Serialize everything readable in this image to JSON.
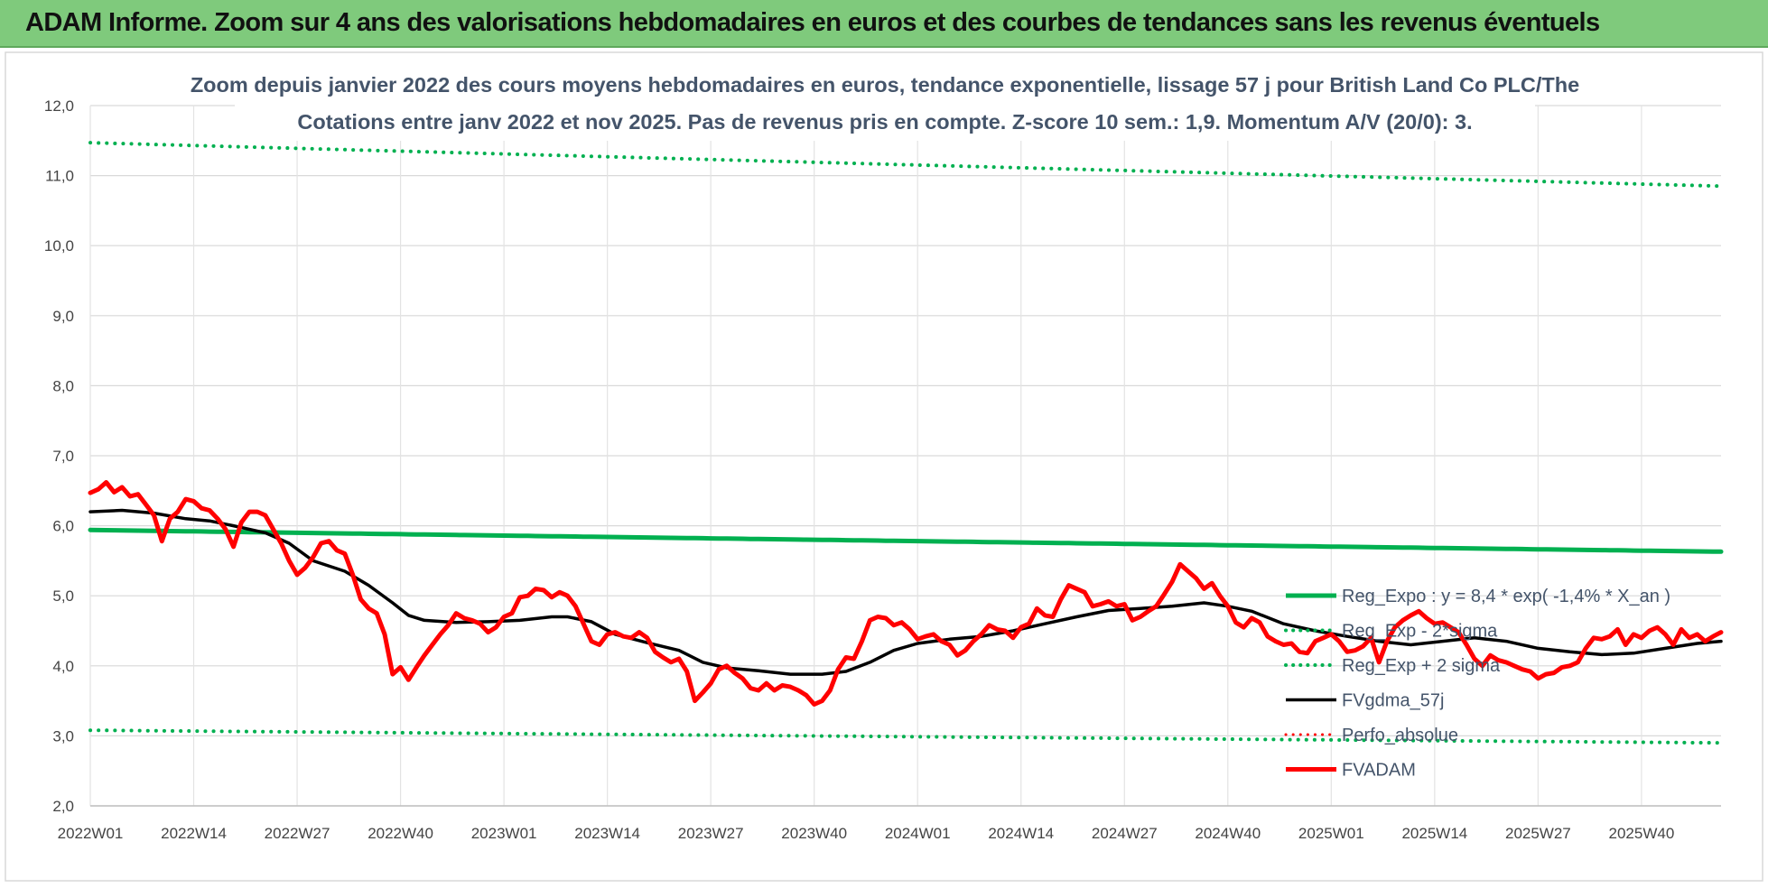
{
  "banner": {
    "title": "ADAM Informe. Zoom sur 4 ans des valorisations hebdomadaires en euros et des courbes de tendances sans les revenus éventuels"
  },
  "colors": {
    "banner": "#7fca7c",
    "reg_expo": "#00b050",
    "bands": "#00b050",
    "fvgdma": "#000000",
    "fvadam": "#ff0000",
    "perfo": "#ff0000"
  },
  "chart_data": {
    "type": "line",
    "title": "Zoom depuis janvier 2022 des cours moyens hebdomadaires en euros, tendance exponentielle, lissage 57 j pour British Land Co PLC/The",
    "subtitle": "Cotations entre janv 2022 et nov 2025. Pas de revenus pris en compte. Z-score 10 sem.: 1,9. Momentum A/V (20/0): 3.",
    "xlabel": "",
    "ylabel": "",
    "ylim": [
      2.0,
      12.0
    ],
    "yticks": [
      "2,0",
      "3,0",
      "4,0",
      "5,0",
      "6,0",
      "7,0",
      "8,0",
      "9,0",
      "10,0",
      "11,0",
      "12,0"
    ],
    "x_tick_labels": [
      "2022W01",
      "2022W14",
      "2022W27",
      "2022W40",
      "2023W01",
      "2023W14",
      "2023W27",
      "2023W40",
      "2024W01",
      "2024W14",
      "2024W27",
      "2024W40",
      "2025W01",
      "2025W14",
      "2025W27",
      "2025W40"
    ],
    "x_tick_weeks": [
      0,
      13,
      26,
      39,
      52,
      65,
      78,
      91,
      104,
      117,
      130,
      143,
      156,
      169,
      182,
      195
    ],
    "n_weeks": 206,
    "grid": true,
    "legend_position": "right",
    "series": [
      {
        "name": "Reg_Expo : y = 8,4 * exp( -1,4% * X_an )",
        "style": "solid",
        "color": "#00b050",
        "width": 5,
        "points": [
          [
            0,
            5.94
          ],
          [
            205,
            5.63
          ]
        ]
      },
      {
        "name": "Reg_Exp - 2*sigma",
        "style": "dotted",
        "color": "#00b050",
        "width": 4,
        "points": [
          [
            0,
            3.08
          ],
          [
            205,
            2.9
          ]
        ]
      },
      {
        "name": "Reg_Exp + 2 sigma",
        "style": "dotted",
        "color": "#00b050",
        "width": 4,
        "points": [
          [
            0,
            11.47
          ],
          [
            205,
            10.85
          ]
        ]
      },
      {
        "name": "FVgdma_57j",
        "style": "solid",
        "color": "#000000",
        "width": 3.5,
        "points": [
          [
            0,
            6.2
          ],
          [
            4,
            6.22
          ],
          [
            8,
            6.18
          ],
          [
            12,
            6.1
          ],
          [
            15,
            6.07
          ],
          [
            18,
            6.0
          ],
          [
            22,
            5.9
          ],
          [
            25,
            5.75
          ],
          [
            28,
            5.5
          ],
          [
            32,
            5.35
          ],
          [
            35,
            5.15
          ],
          [
            38,
            4.9
          ],
          [
            40,
            4.72
          ],
          [
            42,
            4.65
          ],
          [
            46,
            4.62
          ],
          [
            50,
            4.63
          ],
          [
            54,
            4.65
          ],
          [
            58,
            4.7
          ],
          [
            60,
            4.7
          ],
          [
            63,
            4.63
          ],
          [
            66,
            4.45
          ],
          [
            70,
            4.33
          ],
          [
            74,
            4.22
          ],
          [
            77,
            4.05
          ],
          [
            80,
            3.97
          ],
          [
            84,
            3.93
          ],
          [
            88,
            3.88
          ],
          [
            92,
            3.88
          ],
          [
            95,
            3.92
          ],
          [
            98,
            4.05
          ],
          [
            101,
            4.22
          ],
          [
            104,
            4.32
          ],
          [
            108,
            4.38
          ],
          [
            112,
            4.42
          ],
          [
            116,
            4.5
          ],
          [
            120,
            4.6
          ],
          [
            124,
            4.7
          ],
          [
            128,
            4.79
          ],
          [
            132,
            4.82
          ],
          [
            136,
            4.85
          ],
          [
            140,
            4.9
          ],
          [
            143,
            4.85
          ],
          [
            146,
            4.78
          ],
          [
            150,
            4.6
          ],
          [
            154,
            4.5
          ],
          [
            158,
            4.42
          ],
          [
            162,
            4.35
          ],
          [
            166,
            4.3
          ],
          [
            170,
            4.35
          ],
          [
            174,
            4.4
          ],
          [
            178,
            4.35
          ],
          [
            182,
            4.25
          ],
          [
            186,
            4.2
          ],
          [
            190,
            4.16
          ],
          [
            194,
            4.18
          ],
          [
            198,
            4.25
          ],
          [
            202,
            4.32
          ],
          [
            205,
            4.35
          ]
        ]
      },
      {
        "name": "Perfo_absolue",
        "style": "dotted",
        "color": "#ff0000",
        "width": 3,
        "points": []
      },
      {
        "name": "FVADAM",
        "style": "solid",
        "color": "#ff0000",
        "width": 5,
        "points": [
          [
            0,
            6.47
          ],
          [
            1,
            6.52
          ],
          [
            2,
            6.62
          ],
          [
            3,
            6.48
          ],
          [
            4,
            6.55
          ],
          [
            5,
            6.42
          ],
          [
            6,
            6.45
          ],
          [
            7,
            6.3
          ],
          [
            8,
            6.15
          ],
          [
            9,
            5.78
          ],
          [
            10,
            6.1
          ],
          [
            11,
            6.2
          ],
          [
            12,
            6.38
          ],
          [
            13,
            6.35
          ],
          [
            14,
            6.25
          ],
          [
            15,
            6.22
          ],
          [
            16,
            6.1
          ],
          [
            17,
            5.95
          ],
          [
            18,
            5.7
          ],
          [
            19,
            6.05
          ],
          [
            20,
            6.2
          ],
          [
            21,
            6.2
          ],
          [
            22,
            6.15
          ],
          [
            23,
            5.95
          ],
          [
            24,
            5.75
          ],
          [
            25,
            5.5
          ],
          [
            26,
            5.3
          ],
          [
            27,
            5.4
          ],
          [
            28,
            5.55
          ],
          [
            29,
            5.75
          ],
          [
            30,
            5.78
          ],
          [
            31,
            5.65
          ],
          [
            32,
            5.6
          ],
          [
            33,
            5.3
          ],
          [
            34,
            4.95
          ],
          [
            35,
            4.82
          ],
          [
            36,
            4.75
          ],
          [
            37,
            4.45
          ],
          [
            38,
            3.88
          ],
          [
            39,
            3.98
          ],
          [
            40,
            3.8
          ],
          [
            41,
            3.98
          ],
          [
            42,
            4.15
          ],
          [
            43,
            4.3
          ],
          [
            44,
            4.45
          ],
          [
            45,
            4.58
          ],
          [
            46,
            4.75
          ],
          [
            47,
            4.68
          ],
          [
            48,
            4.65
          ],
          [
            49,
            4.6
          ],
          [
            50,
            4.48
          ],
          [
            51,
            4.55
          ],
          [
            52,
            4.7
          ],
          [
            53,
            4.75
          ],
          [
            54,
            4.98
          ],
          [
            55,
            5.0
          ],
          [
            56,
            5.1
          ],
          [
            57,
            5.08
          ],
          [
            58,
            4.98
          ],
          [
            59,
            5.05
          ],
          [
            60,
            5.0
          ],
          [
            61,
            4.85
          ],
          [
            62,
            4.6
          ],
          [
            63,
            4.35
          ],
          [
            64,
            4.3
          ],
          [
            65,
            4.45
          ],
          [
            66,
            4.48
          ],
          [
            67,
            4.42
          ],
          [
            68,
            4.4
          ],
          [
            69,
            4.48
          ],
          [
            70,
            4.4
          ],
          [
            71,
            4.2
          ],
          [
            72,
            4.12
          ],
          [
            73,
            4.05
          ],
          [
            74,
            4.1
          ],
          [
            75,
            3.92
          ],
          [
            76,
            3.5
          ],
          [
            77,
            3.62
          ],
          [
            78,
            3.75
          ],
          [
            79,
            3.95
          ],
          [
            80,
            4.0
          ],
          [
            81,
            3.9
          ],
          [
            82,
            3.82
          ],
          [
            83,
            3.68
          ],
          [
            84,
            3.65
          ],
          [
            85,
            3.75
          ],
          [
            86,
            3.65
          ],
          [
            87,
            3.72
          ],
          [
            88,
            3.7
          ],
          [
            89,
            3.65
          ],
          [
            90,
            3.58
          ],
          [
            91,
            3.45
          ],
          [
            92,
            3.5
          ],
          [
            93,
            3.65
          ],
          [
            94,
            3.95
          ],
          [
            95,
            4.12
          ],
          [
            96,
            4.1
          ],
          [
            97,
            4.35
          ],
          [
            98,
            4.65
          ],
          [
            99,
            4.7
          ],
          [
            100,
            4.68
          ],
          [
            101,
            4.58
          ],
          [
            102,
            4.62
          ],
          [
            103,
            4.52
          ],
          [
            104,
            4.38
          ],
          [
            105,
            4.42
          ],
          [
            106,
            4.45
          ],
          [
            107,
            4.35
          ],
          [
            108,
            4.3
          ],
          [
            109,
            4.15
          ],
          [
            110,
            4.22
          ],
          [
            111,
            4.35
          ],
          [
            112,
            4.45
          ],
          [
            113,
            4.58
          ],
          [
            114,
            4.52
          ],
          [
            115,
            4.5
          ],
          [
            116,
            4.4
          ],
          [
            117,
            4.55
          ],
          [
            118,
            4.6
          ],
          [
            119,
            4.82
          ],
          [
            120,
            4.72
          ],
          [
            121,
            4.7
          ],
          [
            122,
            4.95
          ],
          [
            123,
            5.15
          ],
          [
            124,
            5.1
          ],
          [
            125,
            5.05
          ],
          [
            126,
            4.85
          ],
          [
            127,
            4.88
          ],
          [
            128,
            4.92
          ],
          [
            129,
            4.85
          ],
          [
            130,
            4.88
          ],
          [
            131,
            4.65
          ],
          [
            132,
            4.7
          ],
          [
            133,
            4.78
          ],
          [
            134,
            4.85
          ],
          [
            135,
            5.02
          ],
          [
            136,
            5.2
          ],
          [
            137,
            5.45
          ],
          [
            138,
            5.35
          ],
          [
            139,
            5.25
          ],
          [
            140,
            5.1
          ],
          [
            141,
            5.18
          ],
          [
            142,
            5.0
          ],
          [
            143,
            4.85
          ],
          [
            144,
            4.62
          ],
          [
            145,
            4.55
          ],
          [
            146,
            4.68
          ],
          [
            147,
            4.62
          ],
          [
            148,
            4.42
          ],
          [
            149,
            4.35
          ],
          [
            150,
            4.3
          ],
          [
            151,
            4.32
          ],
          [
            152,
            4.2
          ],
          [
            153,
            4.18
          ],
          [
            154,
            4.35
          ],
          [
            155,
            4.4
          ],
          [
            156,
            4.45
          ],
          [
            157,
            4.35
          ],
          [
            158,
            4.2
          ],
          [
            159,
            4.22
          ],
          [
            160,
            4.28
          ],
          [
            161,
            4.4
          ],
          [
            162,
            4.05
          ],
          [
            163,
            4.35
          ],
          [
            164,
            4.55
          ],
          [
            165,
            4.65
          ],
          [
            166,
            4.72
          ],
          [
            167,
            4.78
          ],
          [
            168,
            4.68
          ],
          [
            169,
            4.6
          ],
          [
            170,
            4.62
          ],
          [
            171,
            4.55
          ],
          [
            172,
            4.48
          ],
          [
            173,
            4.3
          ],
          [
            174,
            4.1
          ],
          [
            175,
            4.0
          ],
          [
            176,
            4.15
          ],
          [
            177,
            4.08
          ],
          [
            178,
            4.05
          ],
          [
            179,
            4.0
          ],
          [
            180,
            3.95
          ],
          [
            181,
            3.92
          ],
          [
            182,
            3.82
          ],
          [
            183,
            3.88
          ],
          [
            184,
            3.9
          ],
          [
            185,
            3.98
          ],
          [
            186,
            4.0
          ],
          [
            187,
            4.05
          ],
          [
            188,
            4.25
          ],
          [
            189,
            4.4
          ],
          [
            190,
            4.38
          ],
          [
            191,
            4.42
          ],
          [
            192,
            4.52
          ],
          [
            193,
            4.3
          ],
          [
            194,
            4.45
          ],
          [
            195,
            4.4
          ],
          [
            196,
            4.5
          ],
          [
            197,
            4.55
          ],
          [
            198,
            4.45
          ],
          [
            199,
            4.3
          ],
          [
            200,
            4.52
          ],
          [
            201,
            4.4
          ],
          [
            202,
            4.45
          ],
          [
            203,
            4.35
          ],
          [
            204,
            4.42
          ],
          [
            205,
            4.48
          ]
        ]
      }
    ]
  }
}
